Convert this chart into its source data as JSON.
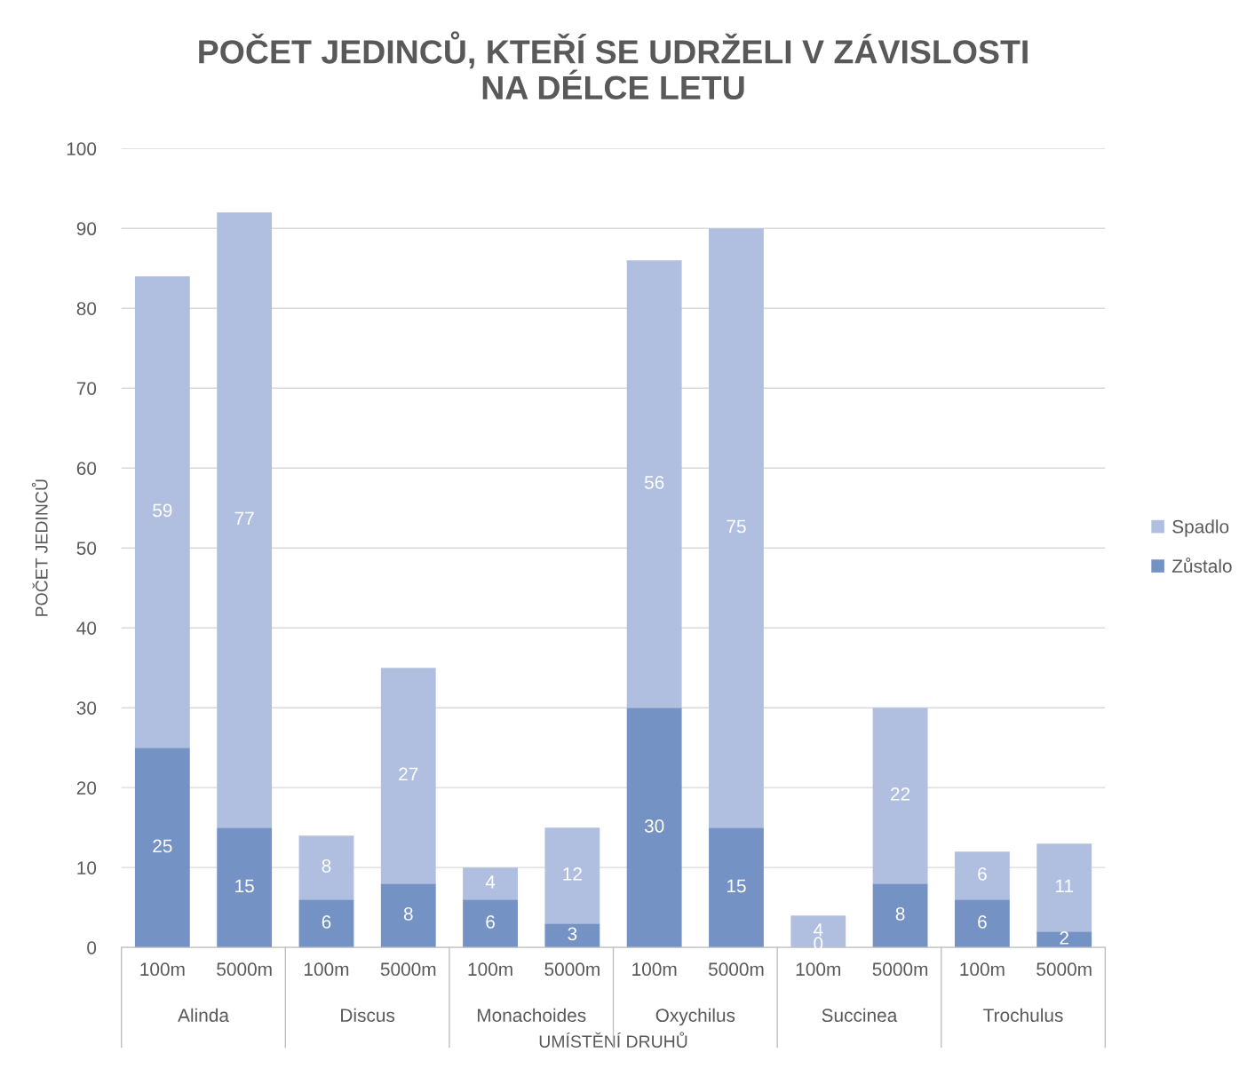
{
  "chart_data": {
    "type": "bar",
    "stacked": true,
    "title": "POČET JEDINCŮ, KTEŘÍ SE UDRŽELI V ZÁVISLOSTI\nNA DÉLCE LETU",
    "xlabel": "UMÍSTĚNÍ DRUHŮ",
    "ylabel": "POČET JEDINCŮ",
    "categories": [
      "100m",
      "5000m",
      "100m",
      "5000m",
      "100m",
      "5000m",
      "100m",
      "5000m",
      "100m",
      "5000m",
      "100m",
      "5000m"
    ],
    "annotations": [
      "Alinda",
      "Discus",
      "Monachoides",
      "Oxychilus",
      "Succinea",
      "Trochulus"
    ],
    "series": [
      {
        "name": "Zůstalo",
        "color": "#7592c4",
        "values": [
          25,
          15,
          6,
          8,
          6,
          3,
          30,
          15,
          0,
          8,
          6,
          2
        ]
      },
      {
        "name": "Spadlo",
        "color": "#b0bfe0",
        "values": [
          59,
          77,
          8,
          27,
          4,
          12,
          56,
          75,
          4,
          22,
          6,
          11
        ]
      }
    ],
    "ylim": [
      0,
      100
    ],
    "yticks": [
      0,
      10,
      20,
      30,
      40,
      50,
      60,
      70,
      80,
      90,
      100
    ],
    "grid": "y",
    "legend": "right",
    "data_labels": true
  }
}
